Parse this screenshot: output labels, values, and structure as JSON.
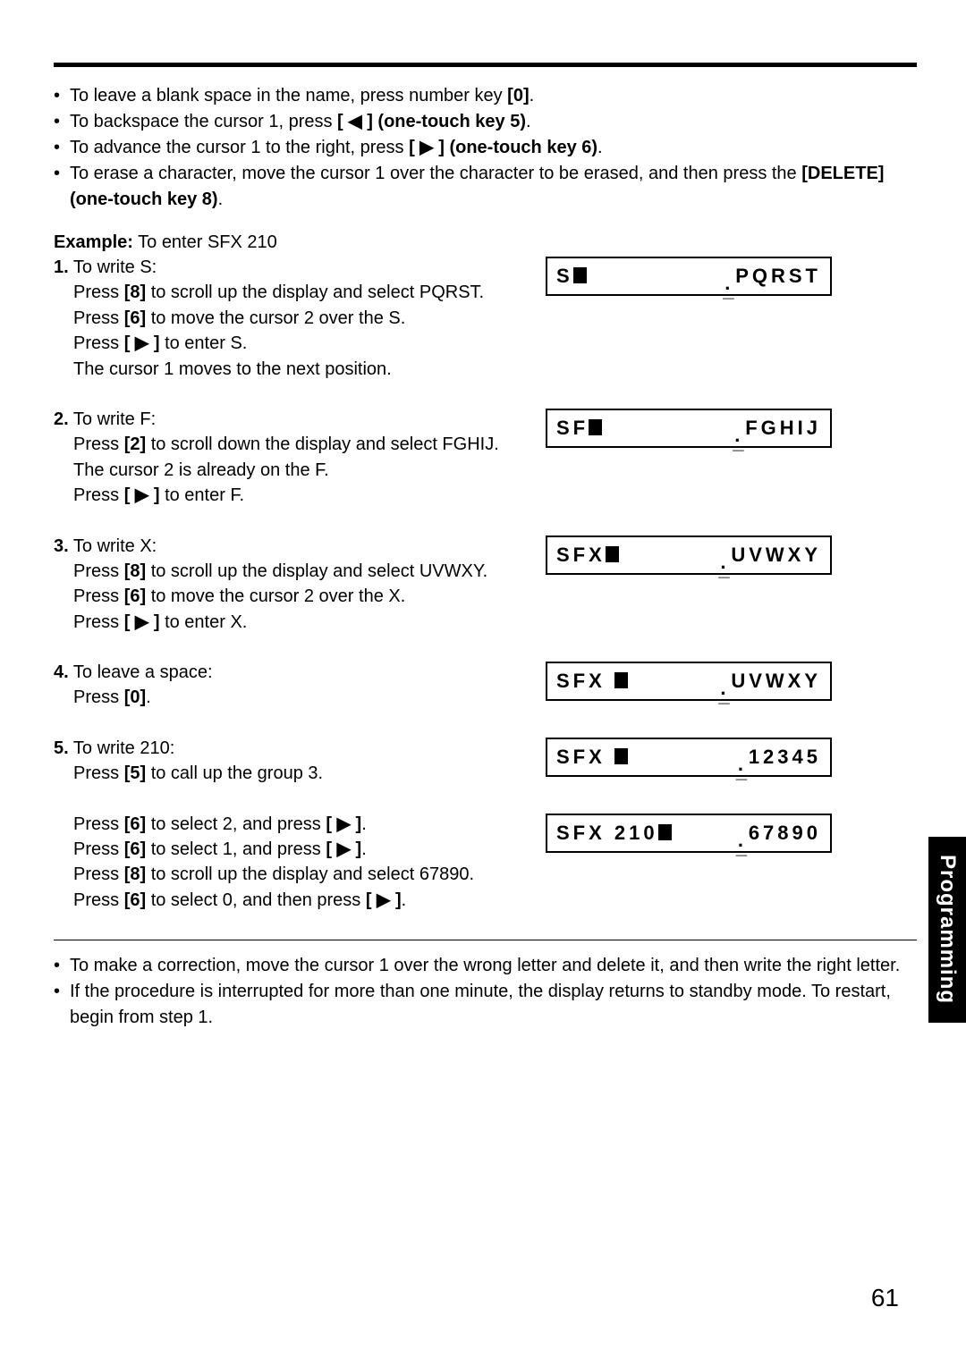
{
  "intro_bullets": [
    {
      "pre": "To leave a blank space in the name, press number key ",
      "bold": "[0]",
      "post": "."
    },
    {
      "pre": "To backspace the cursor 1, press ",
      "bold": "[ ◀ ] (one-touch key 5)",
      "post": "."
    },
    {
      "pre": "To advance the cursor 1 to the right, press ",
      "bold": "[ ▶ ] (one-touch key 6)",
      "post": "."
    },
    {
      "pre": "To erase a character, move the cursor 1 over the character to be erased, and then press the ",
      "bold": "[DELETE] (one-touch key 8)",
      "post": "."
    }
  ],
  "example_label": "Example:",
  "example_text": "  To enter SFX 210",
  "steps": [
    {
      "num": "1.",
      "title": " To write S:",
      "lines": [
        "Press [8] to scroll up the display and select PQRST.",
        "Press [6] to move the cursor 2 over the S.",
        "Press [ ▶ ] to enter S.",
        "The cursor 1 moves to the next position."
      ],
      "bold_tokens": [
        "[8]",
        "[6]",
        "[ ▶ ]"
      ],
      "display_left": "S",
      "display_right": "PQRST"
    },
    {
      "num": "2.",
      "title": " To write F:",
      "lines": [
        "Press [2] to scroll down the display and select FGHIJ.",
        "The cursor 2 is already on the F.",
        "Press [ ▶ ] to enter F."
      ],
      "bold_tokens": [
        "[2]",
        "[ ▶ ]"
      ],
      "display_left": "SF",
      "display_right": "FGHIJ"
    },
    {
      "num": "3.",
      "title": " To write X:",
      "lines": [
        "Press [8] to scroll up the display and select UVWXY.",
        "Press [6] to move the cursor 2 over the X.",
        "Press [ ▶ ] to enter X."
      ],
      "bold_tokens": [
        "[8]",
        "[6]",
        "[ ▶ ]"
      ],
      "display_left": "SFX",
      "display_right": "UVWXY"
    },
    {
      "num": "4.",
      "title": " To leave a space:",
      "lines": [
        "Press [0]."
      ],
      "bold_tokens": [
        "[0]"
      ],
      "display_left": "SFX ",
      "display_right": "UVWXY"
    },
    {
      "num": "5.",
      "title": " To write 210:",
      "lines": [
        "Press [5] to call up the group 3."
      ],
      "bold_tokens": [
        "[5]"
      ],
      "display_left": "SFX ",
      "display_right": "12345"
    },
    {
      "num": "",
      "title": "",
      "lines": [
        "Press [6] to select 2, and press [ ▶ ].",
        "Press [6] to select 1, and press [ ▶ ].",
        "Press [8] to scroll up the display and select 67890.",
        "Press [6] to select 0, and then press [ ▶ ]."
      ],
      "bold_tokens": [
        "[6]",
        "[ ▶ ]",
        "[8]"
      ],
      "display_left": "SFX 210",
      "display_right": "67890"
    }
  ],
  "footer_bullets": [
    "To make a correction, move the cursor 1 over the wrong letter and delete it, and then write the right letter.",
    "If the procedure is interrupted for more than one minute, the display returns to standby mode. To restart, begin from step 1."
  ],
  "tab_label": "Programming",
  "page_number": "61"
}
